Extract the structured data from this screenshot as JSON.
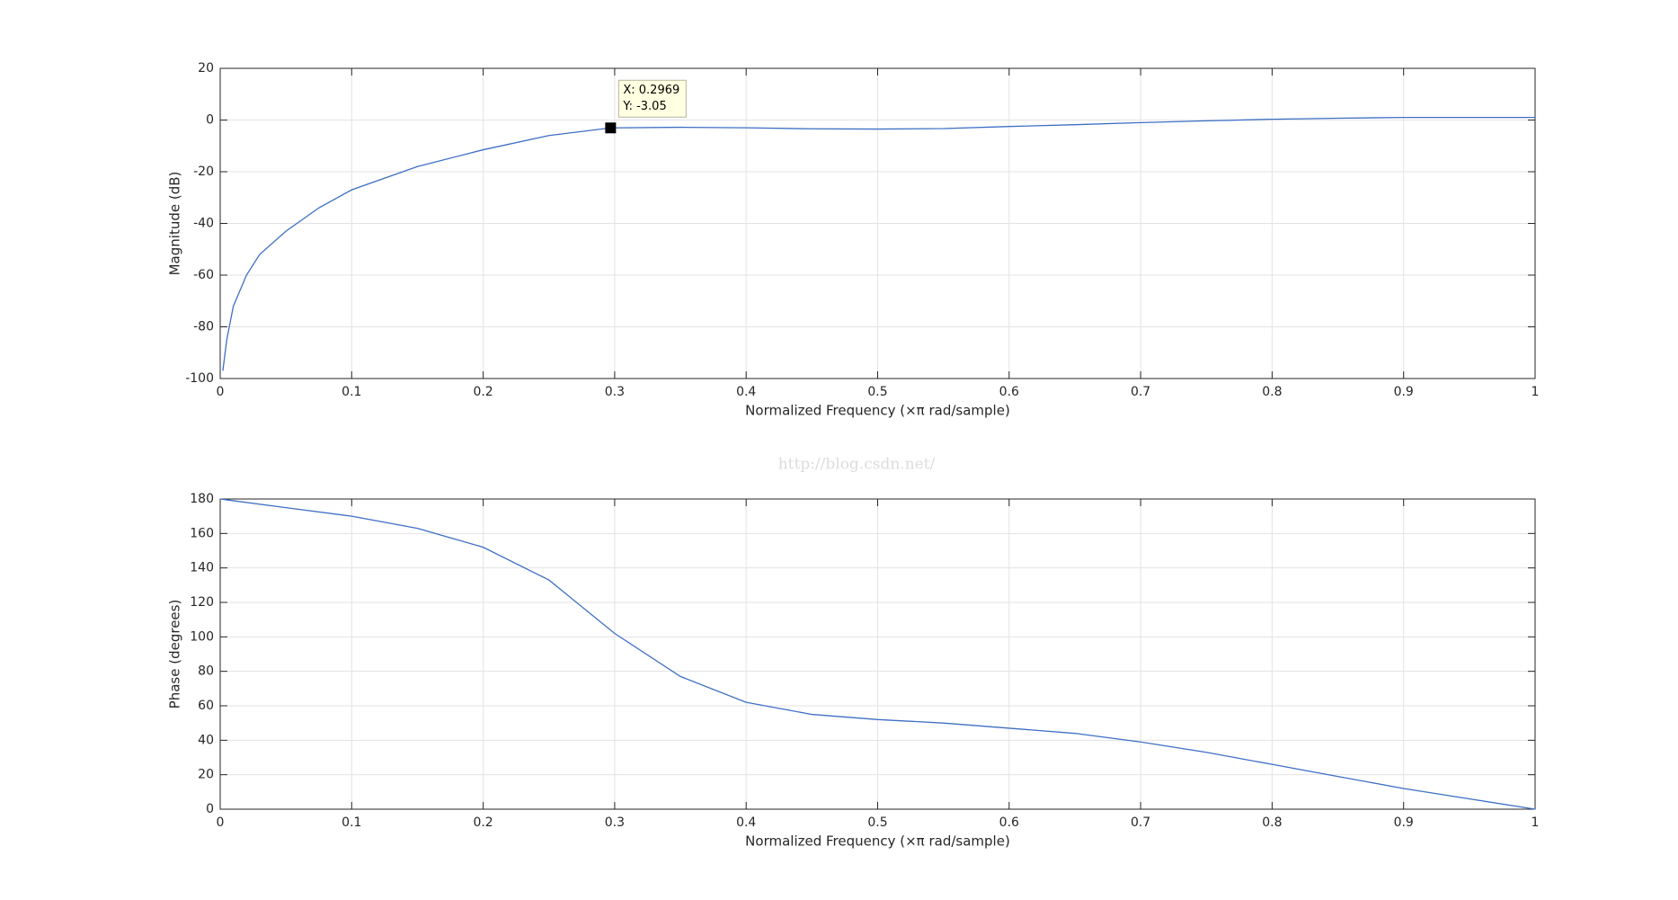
{
  "chart_data": [
    {
      "type": "line",
      "ylabel": "Magnitude (dB)",
      "xlabel": "Normalized Frequency  (×π rad/sample)",
      "x": [
        0.002,
        0.005,
        0.01,
        0.02,
        0.03,
        0.05,
        0.075,
        0.1,
        0.15,
        0.2,
        0.25,
        0.2969,
        0.35,
        0.4,
        0.45,
        0.5,
        0.55,
        0.6,
        0.65,
        0.7,
        0.75,
        0.8,
        0.85,
        0.9,
        0.95,
        1
      ],
      "series": [
        {
          "color": "#3d6fc4",
          "values": [
            -97,
            -85,
            -72,
            -60,
            -52,
            -43,
            -34,
            -27,
            -18,
            -11.5,
            -6,
            -3.05,
            -2.8,
            -3,
            -3.4,
            -3.5,
            -3.3,
            -2.5,
            -1.8,
            -1,
            -0.3,
            0.3,
            0.7,
            1,
            1,
            1
          ]
        }
      ],
      "xlim": [
        0,
        1
      ],
      "ylim": [
        -100,
        20
      ],
      "xticks": [
        0,
        0.1,
        0.2,
        0.3,
        0.4,
        0.5,
        0.6,
        0.7,
        0.8,
        0.9,
        1
      ],
      "yticks": [
        -100,
        -80,
        -60,
        -40,
        -20,
        0,
        20
      ],
      "grid": true,
      "datatip": {
        "x": 0.2969,
        "y": -3.05,
        "label_x": "X: 0.2969",
        "label_y": "Y: -3.05"
      }
    },
    {
      "type": "line",
      "ylabel": "Phase (degrees)",
      "xlabel": "Normalized Frequency  (×π rad/sample)",
      "x": [
        0,
        0.05,
        0.1,
        0.15,
        0.2,
        0.25,
        0.3,
        0.35,
        0.4,
        0.45,
        0.5,
        0.55,
        0.6,
        0.65,
        0.7,
        0.75,
        0.8,
        0.85,
        0.9,
        0.95,
        1
      ],
      "series": [
        {
          "color": "#3d6fc4",
          "values": [
            180,
            175,
            170,
            163,
            152,
            133,
            102,
            77,
            62,
            55,
            52,
            50,
            47,
            44,
            39,
            33,
            26,
            19,
            12,
            6,
            0
          ]
        }
      ],
      "xlim": [
        0,
        1
      ],
      "ylim": [
        0,
        180
      ],
      "xticks": [
        0,
        0.1,
        0.2,
        0.3,
        0.4,
        0.5,
        0.6,
        0.7,
        0.8,
        0.9,
        1
      ],
      "yticks": [
        0,
        20,
        40,
        60,
        80,
        100,
        120,
        140,
        160,
        180
      ],
      "grid": true
    }
  ],
  "watermark": "http://blog.csdn.net/"
}
